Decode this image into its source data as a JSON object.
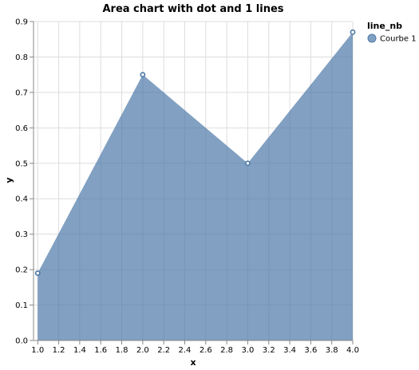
{
  "chart_data": {
    "type": "area",
    "title": "Area chart with dot and 1 lines",
    "xlabel": "x",
    "ylabel": "y",
    "xlim": [
      0.96,
      4.0
    ],
    "ylim": [
      0.0,
      0.9
    ],
    "x_ticks": [
      "1.0",
      "1.2",
      "1.4",
      "1.6",
      "1.8",
      "2.0",
      "2.2",
      "2.4",
      "2.6",
      "2.8",
      "3.0",
      "3.2",
      "3.4",
      "3.6",
      "3.8",
      "4.0"
    ],
    "y_ticks": [
      "0.0",
      "0.1",
      "0.2",
      "0.3",
      "0.4",
      "0.5",
      "0.6",
      "0.7",
      "0.8",
      "0.9"
    ],
    "grid": true,
    "legend": {
      "title": "line_nb",
      "placement": "right"
    },
    "series": [
      {
        "name": "Courbe 1",
        "color": "#4c78a8",
        "x": [
          1.0,
          2.0,
          3.0,
          4.0
        ],
        "y": [
          0.19,
          0.75,
          0.5,
          0.87
        ]
      }
    ]
  }
}
